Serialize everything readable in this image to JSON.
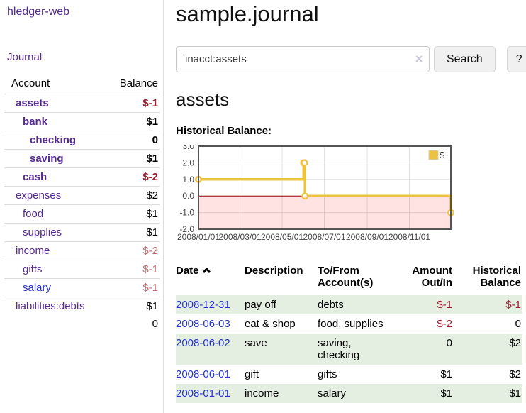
{
  "app": {
    "title": "hledger-web"
  },
  "sidebar": {
    "journal_link": "Journal",
    "accounts_table": {
      "headers": [
        "Account",
        "Balance"
      ],
      "rows": [
        {
          "name": "assets",
          "depth": 0,
          "balance": "$-1",
          "emph": true,
          "tone": "neg-strong"
        },
        {
          "name": "bank",
          "depth": 1,
          "balance": "$1",
          "emph": true
        },
        {
          "name": "checking",
          "depth": 2,
          "balance": "0",
          "emph": true
        },
        {
          "name": "saving",
          "depth": 2,
          "balance": "$1",
          "emph": true
        },
        {
          "name": "cash",
          "depth": 1,
          "balance": "$-2",
          "emph": true,
          "tone": "neg-strong"
        },
        {
          "name": "expenses",
          "depth": 0,
          "balance": "$2"
        },
        {
          "name": "food",
          "depth": 1,
          "balance": "$1"
        },
        {
          "name": "supplies",
          "depth": 1,
          "balance": "$1"
        },
        {
          "name": "income",
          "depth": 0,
          "balance": "$-2",
          "tone": "neg-soft"
        },
        {
          "name": "gifts",
          "depth": 1,
          "balance": "$-1",
          "tone": "neg-soft"
        },
        {
          "name": "salary",
          "depth": 1,
          "balance": "$-1",
          "tone": "neg-soft",
          "link": "blue"
        },
        {
          "name": "liabilities:debts",
          "depth": 0,
          "balance": "$1"
        }
      ],
      "total": "0"
    }
  },
  "main": {
    "title": "sample.journal",
    "search": {
      "value": "inacct:assets",
      "clear_icon": "✕",
      "search_button": "Search",
      "help_button": "?"
    },
    "account_heading": "assets",
    "chart_title": "Historical Balance:",
    "register": {
      "headers": {
        "date": "Date",
        "sort_icon": "chevron-up",
        "description": "Description",
        "accounts": "To/From Account(s)",
        "amount": "Amount Out/In",
        "balance": "Historical Balance"
      },
      "rows": [
        {
          "date": "2008-12-31",
          "description": "pay off",
          "accounts": "debts",
          "amount": "$-1",
          "amount_tone": "neg-strong",
          "balance": "$-1",
          "balance_tone": "neg-strong"
        },
        {
          "date": "2008-06-03",
          "description": "eat & shop",
          "accounts": "food, supplies",
          "amount": "$-2",
          "amount_tone": "neg-strong",
          "balance": "0"
        },
        {
          "date": "2008-06-02",
          "description": "save",
          "accounts": "saving, checking",
          "amount": "0",
          "balance": "$2"
        },
        {
          "date": "2008-06-01",
          "description": "gift",
          "accounts": "gifts",
          "amount": "$1",
          "balance": "$2"
        },
        {
          "date": "2008-01-01",
          "description": "income",
          "accounts": "salary",
          "amount": "$1",
          "balance": "$1"
        }
      ]
    }
  },
  "chart_data": {
    "type": "line",
    "step": true,
    "title": "Historical Balance",
    "series": [
      {
        "name": "$",
        "color": "#edc240",
        "points": [
          {
            "date": "2008-01-01",
            "value": 1
          },
          {
            "date": "2008-06-01",
            "value": 2
          },
          {
            "date": "2008-06-02",
            "value": 2
          },
          {
            "date": "2008-06-03",
            "value": 0
          },
          {
            "date": "2008-12-31",
            "value": -1
          }
        ]
      }
    ],
    "xlim": [
      "2008-01-01",
      "2008-12-31"
    ],
    "ylim": [
      -2,
      3
    ],
    "yticks": [
      3.0,
      2.0,
      1.0,
      0.0,
      -1.0,
      -2.0
    ],
    "xticks": [
      {
        "date": "2008-01-01",
        "label": "2008/01/01"
      },
      {
        "date": "2008-03-01",
        "label": "2008/03/01"
      },
      {
        "date": "2008-05-01",
        "label": "2008/05/01"
      },
      {
        "date": "2008-07-01",
        "label": "2008/07/01"
      },
      {
        "date": "2008-09-01",
        "label": "2008/09/01"
      },
      {
        "date": "2008-11-01",
        "label": "2008/11/01"
      }
    ],
    "grid": true,
    "legend": {
      "position": "top-right",
      "label": "$"
    },
    "colors": {
      "border": "#545454",
      "gridline": "#e0e0e0",
      "zero_line": "#8b0000",
      "negative_region": "rgba(255,0,0,0.11)",
      "tick_text": "#444444"
    }
  }
}
